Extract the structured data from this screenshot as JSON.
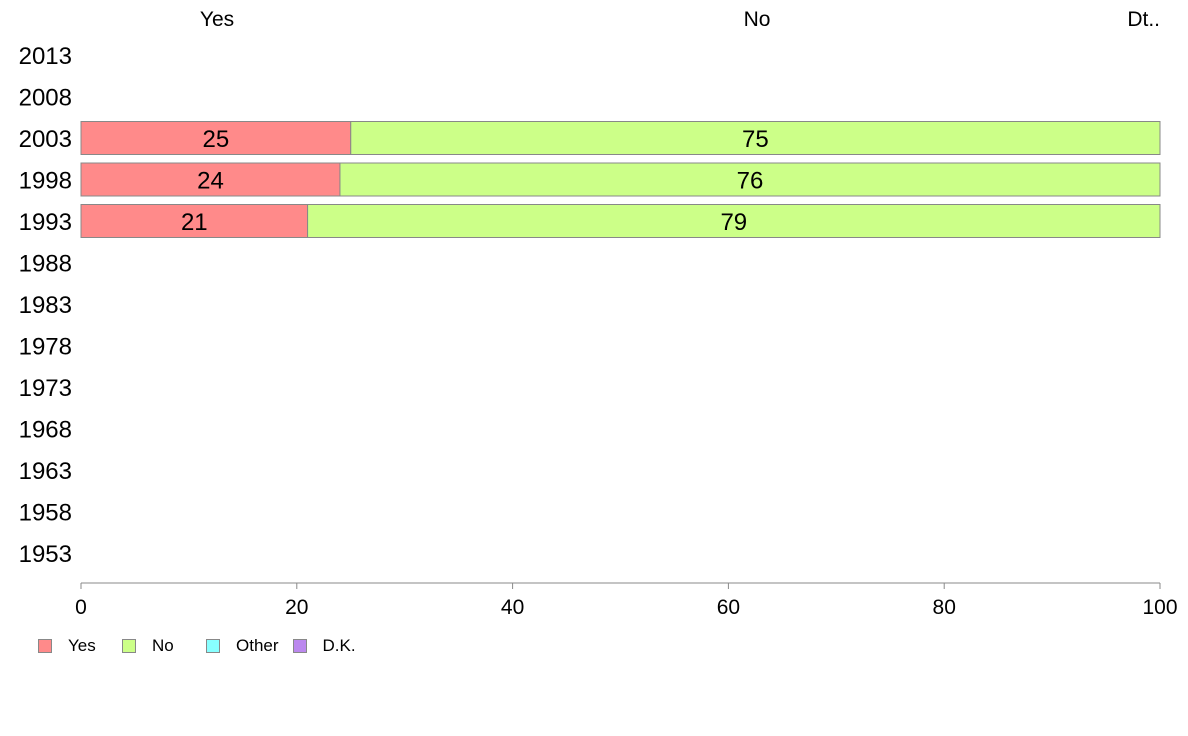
{
  "chart_data": {
    "type": "bar",
    "orientation": "horizontal",
    "stacked": true,
    "categories": [
      "2013",
      "2008",
      "2003",
      "1998",
      "1993",
      "1988",
      "1983",
      "1978",
      "1973",
      "1968",
      "1963",
      "1958",
      "1953"
    ],
    "series": [
      {
        "name": "Yes",
        "color": "#ff8a8a",
        "values": [
          null,
          null,
          25,
          24,
          21,
          null,
          null,
          null,
          null,
          null,
          null,
          null,
          null
        ]
      },
      {
        "name": "No",
        "color": "#ccff88",
        "values": [
          null,
          null,
          75,
          76,
          79,
          null,
          null,
          null,
          null,
          null,
          null,
          null,
          null
        ]
      },
      {
        "name": "Other",
        "color": "#88ffff",
        "values": [
          null,
          null,
          0,
          0,
          0,
          null,
          null,
          null,
          null,
          null,
          null,
          null,
          null
        ]
      },
      {
        "name": "D.K.",
        "color": "#bb88ee",
        "values": [
          null,
          null,
          0,
          0,
          0,
          null,
          null,
          null,
          null,
          null,
          null,
          null,
          null
        ]
      }
    ],
    "column_labels": [
      "Yes",
      "No",
      "Dt.."
    ],
    "xlim": [
      0,
      100
    ],
    "xticks": [
      0,
      20,
      40,
      60,
      80,
      100
    ],
    "grid": false,
    "legend_position": "bottom-left"
  }
}
